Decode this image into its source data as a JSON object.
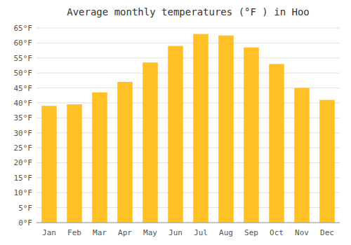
{
  "chart_data": {
    "type": "bar",
    "title": "Average monthly temperatures (°F ) in Hoo",
    "categories": [
      "Jan",
      "Feb",
      "Mar",
      "Apr",
      "May",
      "Jun",
      "Jul",
      "Aug",
      "Sep",
      "Oct",
      "Nov",
      "Dec"
    ],
    "values": [
      39,
      39.5,
      43.5,
      47,
      53.5,
      59,
      63,
      62.5,
      58.5,
      53,
      45,
      41
    ],
    "color": "#FFC125",
    "ylim": [
      0,
      65
    ],
    "yticks": [
      {
        "value": 0,
        "label": "0°F"
      },
      {
        "value": 5,
        "label": "5°F"
      },
      {
        "value": 10,
        "label": "10°F"
      },
      {
        "value": 15,
        "label": "15°F"
      },
      {
        "value": 20,
        "label": "20°F"
      },
      {
        "value": 25,
        "label": "25°F"
      },
      {
        "value": 30,
        "label": "30°F"
      },
      {
        "value": 35,
        "label": "35°F"
      },
      {
        "value": 40,
        "label": "40°F"
      },
      {
        "value": 45,
        "label": "45°F"
      },
      {
        "value": 50,
        "label": "50°F"
      },
      {
        "value": 55,
        "label": "55°F"
      },
      {
        "value": 60,
        "label": "60°F"
      },
      {
        "value": 65,
        "label": "65°F"
      }
    ],
    "grid": true
  }
}
